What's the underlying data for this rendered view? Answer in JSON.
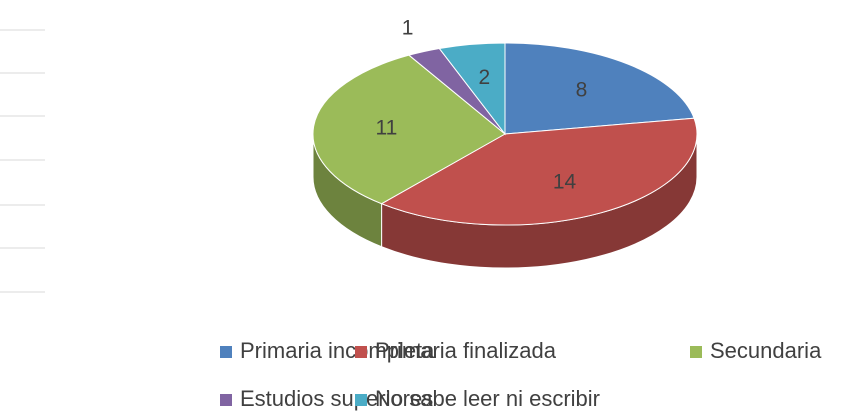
{
  "chart_data": {
    "type": "pie",
    "categories": [
      "Primaria incompleta",
      "Primaria finalizada",
      "Secundaria",
      "Estudios superiores",
      "No sabe leer ni escribir"
    ],
    "values": [
      8,
      14,
      11,
      1,
      2
    ],
    "colors": [
      "#4f81bd",
      "#c0504d",
      "#9bbb59",
      "#8064a2",
      "#4bacc6"
    ],
    "legend": "bottom"
  }
}
